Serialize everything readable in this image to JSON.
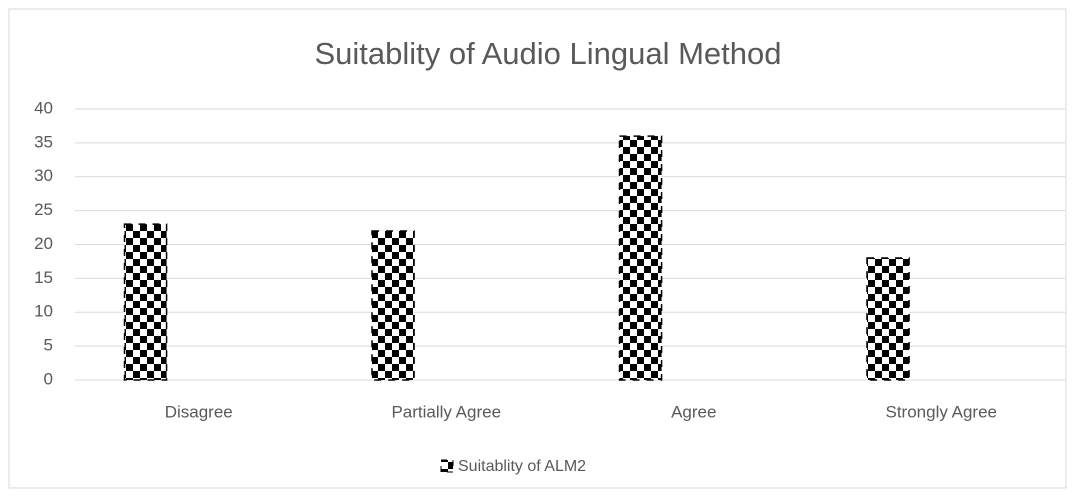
{
  "chart_data": {
    "type": "bar",
    "title": "Suitablity of Audio Lingual Method",
    "categories": [
      "Disagree",
      "Partially Agree",
      "Agree",
      "Strongly Agree"
    ],
    "series": [
      {
        "name": "Suitablity of ALM2",
        "color": "#000000",
        "values": [
          23,
          22,
          36,
          18
        ]
      }
    ],
    "ylim": [
      0,
      40
    ],
    "yticks": [
      0,
      5,
      10,
      15,
      20,
      25,
      30,
      35,
      40
    ],
    "grid": true,
    "legend": "bottom"
  }
}
